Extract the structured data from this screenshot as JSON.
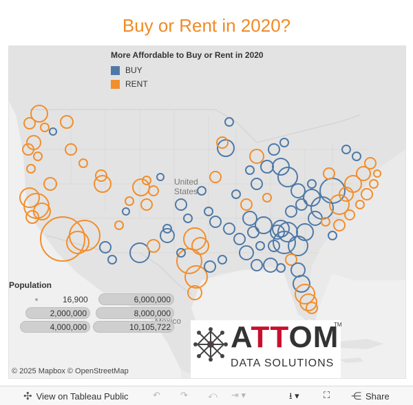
{
  "title": "Buy or Rent in 2020?",
  "legend": {
    "title": "More Affordable to Buy or Rent in 2020",
    "items": [
      {
        "label": "BUY",
        "color": "#4e79a7"
      },
      {
        "label": "RENT",
        "color": "#f28e2b"
      }
    ]
  },
  "population_legend": {
    "title": "Population",
    "values": [
      "16,900",
      "2,000,000",
      "4,000,000",
      "6,000,000",
      "8,000,000",
      "10,105,722"
    ]
  },
  "map_labels": {
    "country_us": "United States",
    "country_us_line1": "United",
    "country_us_line2": "States",
    "country_mexico": "Mexico"
  },
  "attribution": "© 2025 Mapbox  © OpenStreetMap",
  "logo": {
    "brand_a": "A",
    "brand_tt": "TT",
    "brand_om": "OM",
    "tm": "TM",
    "subtitle": "DATA SOLUTIONS"
  },
  "toolbar": {
    "view_label": "View on Tableau Public",
    "share_label": "Share"
  }
}
